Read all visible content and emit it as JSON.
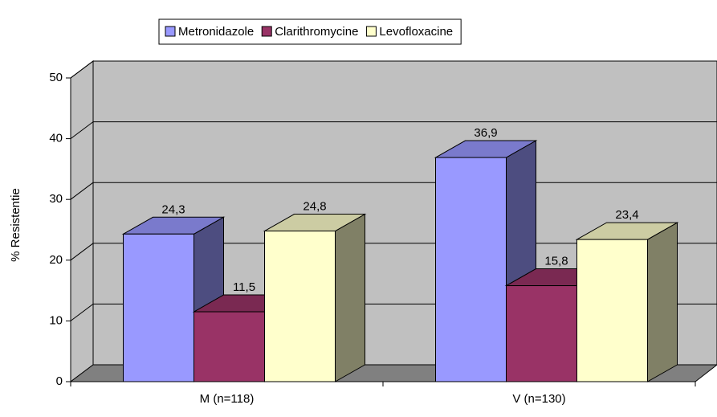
{
  "chart_data": {
    "type": "bar3d",
    "y_label": "% Resistentie",
    "categories": [
      "M (n=118)",
      "V (n=130)"
    ],
    "series": [
      {
        "name": "Metronidazole",
        "color": "#9999ff",
        "values": [
          24.3,
          36.9
        ],
        "value_labels": [
          "24,3",
          "36,9"
        ]
      },
      {
        "name": "Clarithromycine",
        "color": "#993366",
        "values": [
          11.5,
          15.8
        ],
        "value_labels": [
          "11,5",
          "15,8"
        ]
      },
      {
        "name": "Levofloxacine",
        "color": "#ffffcc",
        "values": [
          24.8,
          23.4
        ],
        "value_labels": [
          "24,8",
          "23,4"
        ]
      }
    ],
    "ylim": [
      0,
      50
    ],
    "yticks": [
      0,
      10,
      20,
      30,
      40,
      50
    ],
    "grid": true,
    "legend": "top"
  }
}
